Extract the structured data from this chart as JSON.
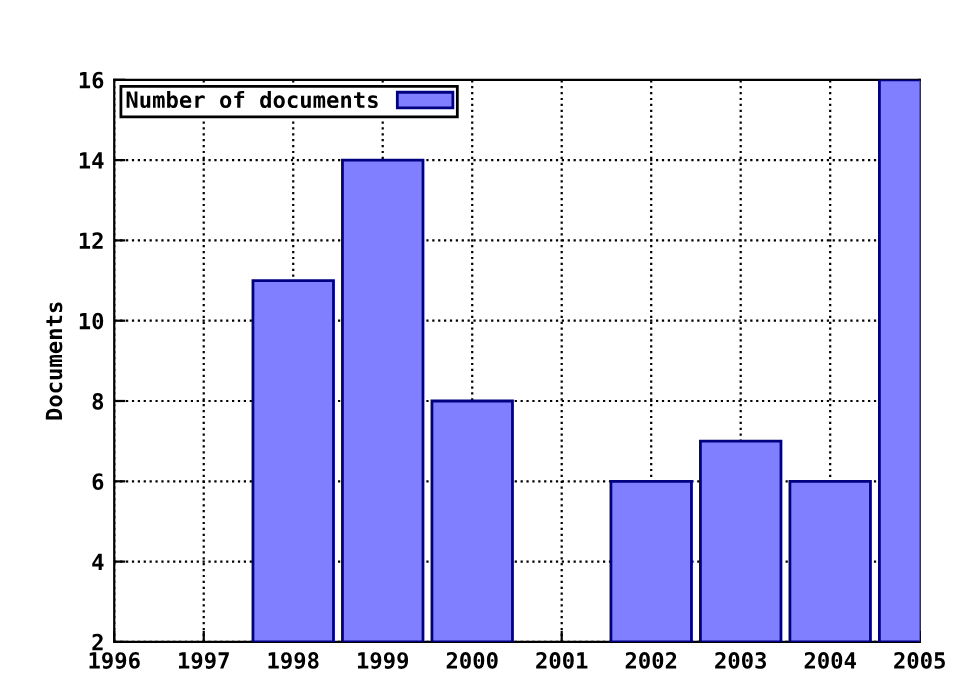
{
  "chart_data": {
    "type": "bar",
    "ylabel": "Documents",
    "x": [
      1998,
      1999,
      2000,
      2002,
      2003,
      2004,
      2005
    ],
    "series": [
      {
        "name": "Number of documents",
        "color": "#7f7fff",
        "values": [
          11,
          14,
          8,
          6,
          7,
          6,
          16
        ]
      }
    ],
    "xlim": [
      1996,
      2005
    ],
    "xticks": [
      1996,
      1997,
      1998,
      1999,
      2000,
      2001,
      2002,
      2003,
      2004,
      2005
    ],
    "ylim": [
      2,
      16
    ],
    "yticks": [
      2,
      4,
      6,
      8,
      10,
      12,
      14,
      16
    ],
    "grid": true,
    "legend": "top left",
    "line_style": "dotted"
  }
}
